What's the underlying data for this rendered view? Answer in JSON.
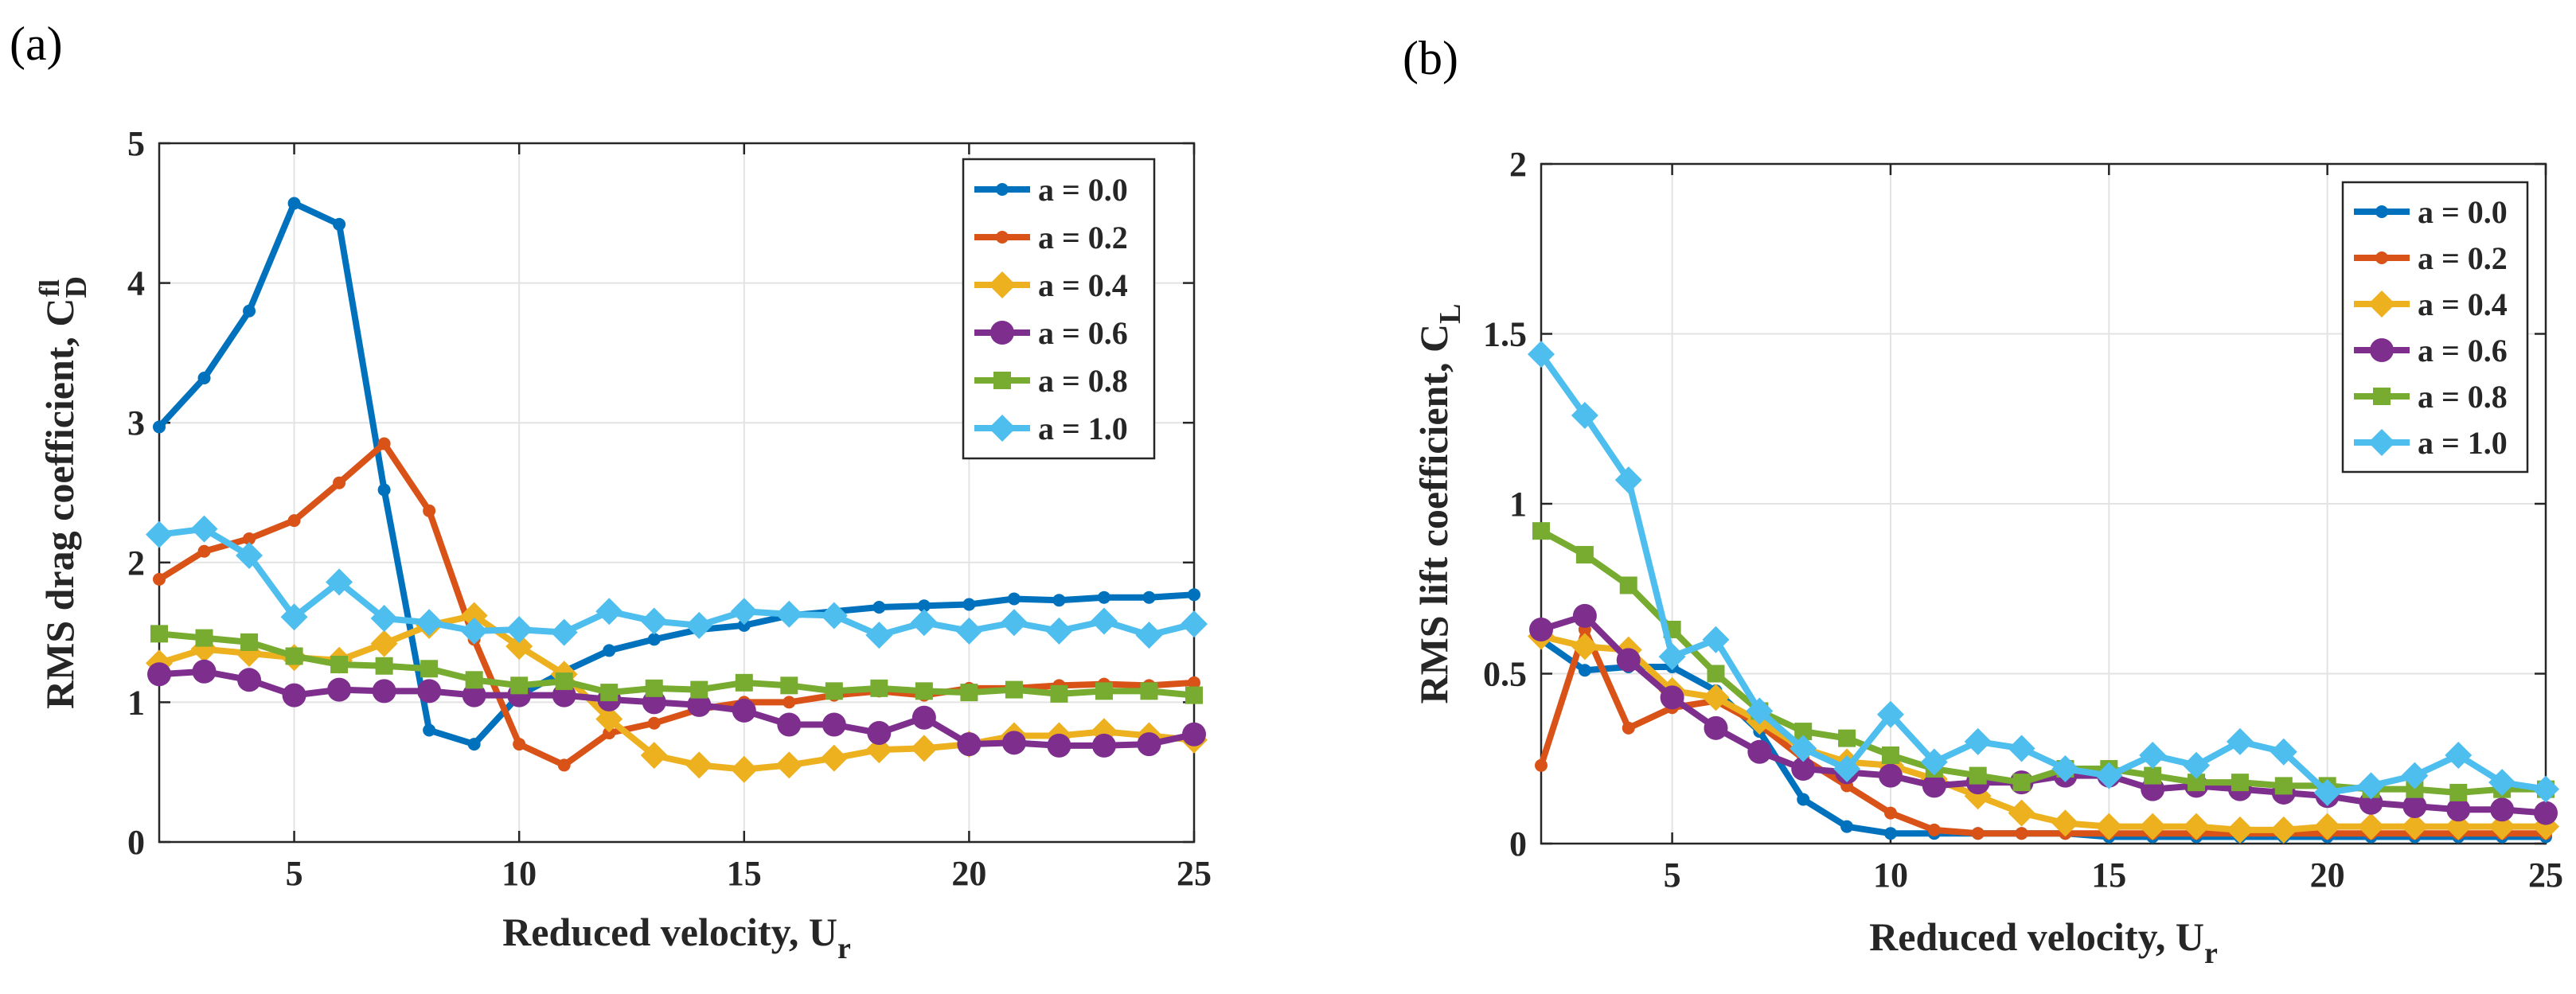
{
  "chart_data": [
    {
      "type": "line",
      "panel_label": "(a)",
      "xlabel": "Reduced velocity, U",
      "xlabel_sub": "r",
      "ylabel": "RMS drag coefficient, C",
      "ylabel_sub": "D",
      "ylabel_sup": "fl",
      "xlim": [
        2,
        25
      ],
      "ylim": [
        0,
        5
      ],
      "xticks": [
        "5",
        "10",
        "15",
        "20",
        "25"
      ],
      "yticks": [
        "0",
        "1",
        "2",
        "3",
        "4",
        "5"
      ],
      "grid": true,
      "legend_position": "top-right",
      "x": [
        2,
        3,
        4,
        5,
        6,
        7,
        8,
        9,
        10,
        11,
        12,
        13,
        14,
        15,
        16,
        17,
        18,
        19,
        20,
        21,
        22,
        23,
        24,
        25
      ],
      "series": [
        {
          "name": "a = 0.0",
          "color": "#0072BD",
          "marker": "dot",
          "values": [
            2.97,
            3.32,
            3.8,
            4.57,
            4.42,
            2.52,
            0.8,
            0.7,
            1.05,
            1.22,
            1.37,
            1.45,
            1.52,
            1.55,
            1.62,
            1.65,
            1.68,
            1.69,
            1.7,
            1.74,
            1.73,
            1.75,
            1.75,
            1.77
          ]
        },
        {
          "name": "a = 0.2",
          "color": "#D95319",
          "marker": "dot",
          "values": [
            1.88,
            2.08,
            2.17,
            2.3,
            2.57,
            2.85,
            2.37,
            1.45,
            0.7,
            0.55,
            0.78,
            0.85,
            0.95,
            1.0,
            1.0,
            1.05,
            1.08,
            1.05,
            1.1,
            1.1,
            1.12,
            1.13,
            1.12,
            1.14
          ]
        },
        {
          "name": "a = 0.4",
          "color": "#EDB120",
          "marker": "diamond",
          "values": [
            1.28,
            1.38,
            1.35,
            1.32,
            1.3,
            1.42,
            1.55,
            1.62,
            1.4,
            1.2,
            0.88,
            0.62,
            0.55,
            0.52,
            0.55,
            0.6,
            0.66,
            0.67,
            0.7,
            0.76,
            0.76,
            0.79,
            0.76,
            0.73
          ]
        },
        {
          "name": "a = 0.6",
          "color": "#7E2F8E",
          "marker": "circle",
          "values": [
            1.2,
            1.22,
            1.16,
            1.05,
            1.09,
            1.08,
            1.08,
            1.05,
            1.05,
            1.05,
            1.02,
            1.0,
            0.98,
            0.94,
            0.84,
            0.84,
            0.78,
            0.89,
            0.7,
            0.71,
            0.69,
            0.69,
            0.7,
            0.77
          ]
        },
        {
          "name": "a = 0.8",
          "color": "#77AC30",
          "marker": "square",
          "values": [
            1.49,
            1.46,
            1.43,
            1.33,
            1.27,
            1.26,
            1.24,
            1.16,
            1.12,
            1.15,
            1.07,
            1.1,
            1.09,
            1.14,
            1.12,
            1.08,
            1.1,
            1.08,
            1.07,
            1.09,
            1.06,
            1.08,
            1.08,
            1.05
          ]
        },
        {
          "name": "a = 1.0",
          "color": "#4DBEEE",
          "marker": "diamond",
          "values": [
            2.2,
            2.24,
            2.05,
            1.61,
            1.86,
            1.6,
            1.57,
            1.51,
            1.52,
            1.5,
            1.65,
            1.58,
            1.55,
            1.65,
            1.63,
            1.62,
            1.48,
            1.57,
            1.51,
            1.57,
            1.51,
            1.58,
            1.48,
            1.56
          ]
        }
      ]
    },
    {
      "type": "line",
      "panel_label": "(b)",
      "xlabel": "Reduced velocity, U",
      "xlabel_sub": "r",
      "ylabel": "RMS lift coefficient, C",
      "ylabel_sub": "L",
      "ylabel_sup": "",
      "xlim": [
        2,
        25
      ],
      "ylim": [
        0,
        2
      ],
      "xticks": [
        "5",
        "10",
        "15",
        "20",
        "25"
      ],
      "yticks": [
        "0",
        "0.5",
        "1",
        "1.5",
        "2"
      ],
      "grid": true,
      "legend_position": "top-right",
      "x": [
        2,
        3,
        4,
        5,
        6,
        7,
        8,
        9,
        10,
        11,
        12,
        13,
        14,
        15,
        16,
        17,
        18,
        19,
        20,
        21,
        22,
        23,
        24,
        25
      ],
      "series": [
        {
          "name": "a = 0.0",
          "color": "#0072BD",
          "marker": "dot",
          "values": [
            0.6,
            0.51,
            0.52,
            0.52,
            0.45,
            0.33,
            0.13,
            0.05,
            0.03,
            0.03,
            0.03,
            0.03,
            0.03,
            0.02,
            0.02,
            0.02,
            0.02,
            0.02,
            0.02,
            0.02,
            0.02,
            0.02,
            0.02,
            0.02
          ]
        },
        {
          "name": "a = 0.2",
          "color": "#D95319",
          "marker": "dot",
          "values": [
            0.23,
            0.63,
            0.34,
            0.4,
            0.42,
            0.35,
            0.25,
            0.17,
            0.09,
            0.04,
            0.03,
            0.03,
            0.03,
            0.03,
            0.03,
            0.03,
            0.03,
            0.03,
            0.03,
            0.03,
            0.03,
            0.03,
            0.03,
            0.03
          ]
        },
        {
          "name": "a = 0.4",
          "color": "#EDB120",
          "marker": "diamond",
          "values": [
            0.61,
            0.58,
            0.57,
            0.45,
            0.43,
            0.36,
            0.28,
            0.24,
            0.23,
            0.19,
            0.14,
            0.09,
            0.06,
            0.05,
            0.05,
            0.05,
            0.04,
            0.04,
            0.05,
            0.05,
            0.05,
            0.05,
            0.05,
            0.05
          ]
        },
        {
          "name": "a = 0.6",
          "color": "#7E2F8E",
          "marker": "circle",
          "values": [
            0.63,
            0.67,
            0.54,
            0.43,
            0.34,
            0.27,
            0.22,
            0.21,
            0.2,
            0.17,
            0.18,
            0.18,
            0.2,
            0.2,
            0.16,
            0.17,
            0.16,
            0.15,
            0.14,
            0.12,
            0.11,
            0.1,
            0.1,
            0.09
          ]
        },
        {
          "name": "a = 0.8",
          "color": "#77AC30",
          "marker": "square",
          "values": [
            0.92,
            0.85,
            0.76,
            0.63,
            0.5,
            0.39,
            0.33,
            0.31,
            0.26,
            0.22,
            0.2,
            0.18,
            0.22,
            0.22,
            0.2,
            0.18,
            0.18,
            0.17,
            0.17,
            0.16,
            0.16,
            0.15,
            0.16,
            0.16
          ]
        },
        {
          "name": "a = 1.0",
          "color": "#4DBEEE",
          "marker": "diamond",
          "values": [
            1.44,
            1.26,
            1.07,
            0.55,
            0.6,
            0.39,
            0.28,
            0.22,
            0.38,
            0.24,
            0.3,
            0.28,
            0.22,
            0.2,
            0.26,
            0.23,
            0.3,
            0.27,
            0.15,
            0.17,
            0.2,
            0.26,
            0.18,
            0.16
          ]
        }
      ]
    }
  ]
}
